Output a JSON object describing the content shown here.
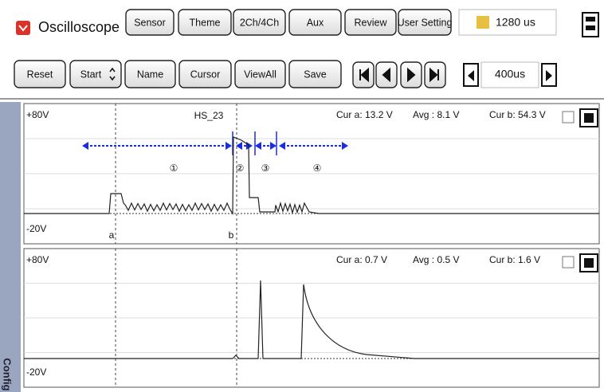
{
  "header": {
    "app_title": "Oscilloscope",
    "buttons": [
      "Sensor",
      "Theme",
      "2Ch/4Ch",
      "Aux",
      "Review",
      "User Setting"
    ],
    "time_value": "1280 us"
  },
  "toolbar": {
    "buttons": [
      "Reset",
      "Start",
      "Name",
      "Cursor",
      "ViewAll",
      "Save"
    ],
    "timebase": "400us"
  },
  "sidebar": {
    "label": "Config"
  },
  "channels": [
    {
      "top_label": "+80V",
      "bottom_label": "-20V",
      "name": "HS_23",
      "readouts": [
        "Cur a: 13.2 V",
        "Avg : 8.1 V",
        "Cur b: 54.3 V"
      ],
      "cursor_labels": [
        "a",
        "b"
      ],
      "phases": [
        "①",
        "②",
        "③",
        "④"
      ]
    },
    {
      "top_label": "+80V",
      "bottom_label": "-20V",
      "readouts": [
        "Cur a: 0.7 V",
        "Avg : 0.5 V",
        "Cur b: 1.6 V"
      ]
    }
  ]
}
